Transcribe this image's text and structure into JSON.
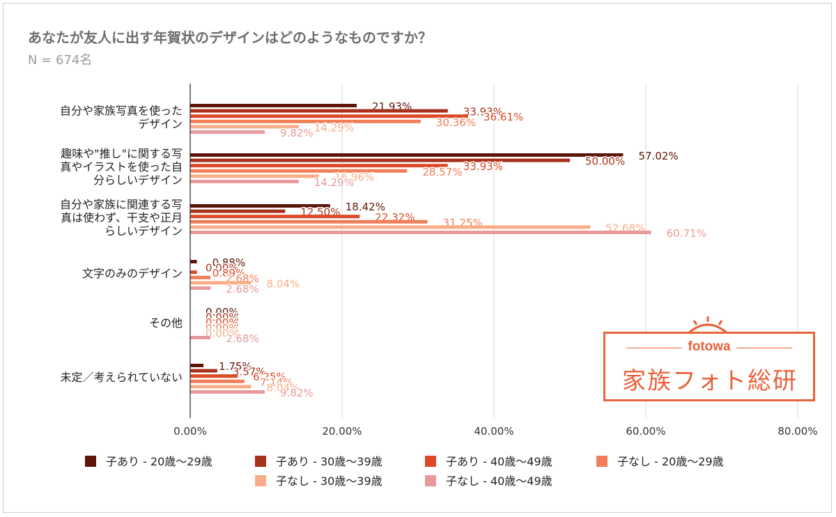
{
  "title": "あなたが友人に出す年賀状のデザインはどのようなものですか？",
  "subtitle": "N = 674名",
  "logo": {
    "brand": "fotowa",
    "name": "家族フォト総研",
    "color": "#e8623a"
  },
  "chart_data": {
    "type": "bar",
    "orientation": "horizontal",
    "categories": [
      [
        "自分や家族写真を使った",
        "デザイン"
      ],
      [
        "趣味や\"推し\"に関する写",
        "真やイラストを使った自",
        "分らしいデザイン"
      ],
      [
        "自分や家族に関連する写",
        "真は使わず、干支や正月",
        "らしいデザイン"
      ],
      [
        "文字のみのデザイン"
      ],
      [
        "その他"
      ],
      [
        "未定／考えられていない"
      ]
    ],
    "series": [
      {
        "name": "子あり - 20歳〜29歳",
        "color": "#5c1508",
        "values": [
          21.93,
          57.02,
          18.42,
          0.88,
          0.0,
          1.75
        ]
      },
      {
        "name": "子あり - 30歳〜39歳",
        "color": "#a8311c",
        "values": [
          33.93,
          50.0,
          12.5,
          0.0,
          0.0,
          3.57
        ]
      },
      {
        "name": "子あり - 40歳〜49歳",
        "color": "#dc4a26",
        "values": [
          36.61,
          33.93,
          22.32,
          0.89,
          0.0,
          6.25
        ]
      },
      {
        "name": "子なし - 20歳〜29歳",
        "color": "#f07e58",
        "values": [
          30.36,
          28.57,
          31.25,
          2.68,
          0.0,
          7.14
        ]
      },
      {
        "name": "子なし - 30歳〜39歳",
        "color": "#f8ad88",
        "values": [
          14.29,
          16.96,
          52.68,
          8.04,
          0.0,
          8.04
        ]
      },
      {
        "name": "子なし - 40歳〜49歳",
        "color": "#e8999b",
        "values": [
          9.82,
          14.29,
          60.71,
          2.68,
          2.68,
          9.82
        ]
      }
    ],
    "value_labels": [
      [
        "21.93%",
        "57.02%",
        "18.42%",
        "0.88%",
        "0.00%",
        "1.75%"
      ],
      [
        "33.93%",
        "50.00%",
        "12.50%",
        "0.00%",
        "0.00%",
        "3.57%"
      ],
      [
        "36.61%",
        "33.93%",
        "22.32%",
        "0.89%",
        "0.00%",
        "6.25%"
      ],
      [
        "30.36%",
        "28.57%",
        "31.25%",
        "2.68%",
        "0.00%",
        "7.14%"
      ],
      [
        "14.29%",
        "16.96%",
        "52.68%",
        "8.04%",
        "0.00%",
        "8.04%"
      ],
      [
        "9.82%",
        "14.29%",
        "60.71%",
        "2.68%",
        "2.68%",
        "9.82%"
      ]
    ],
    "xlim": [
      0,
      80
    ],
    "xticks": [
      0,
      20,
      40,
      60,
      80
    ],
    "xtick_labels": [
      "0.00%",
      "20.00%",
      "40.00%",
      "60.00%",
      "80.00%"
    ],
    "grid": true,
    "legend_position": "bottom"
  }
}
